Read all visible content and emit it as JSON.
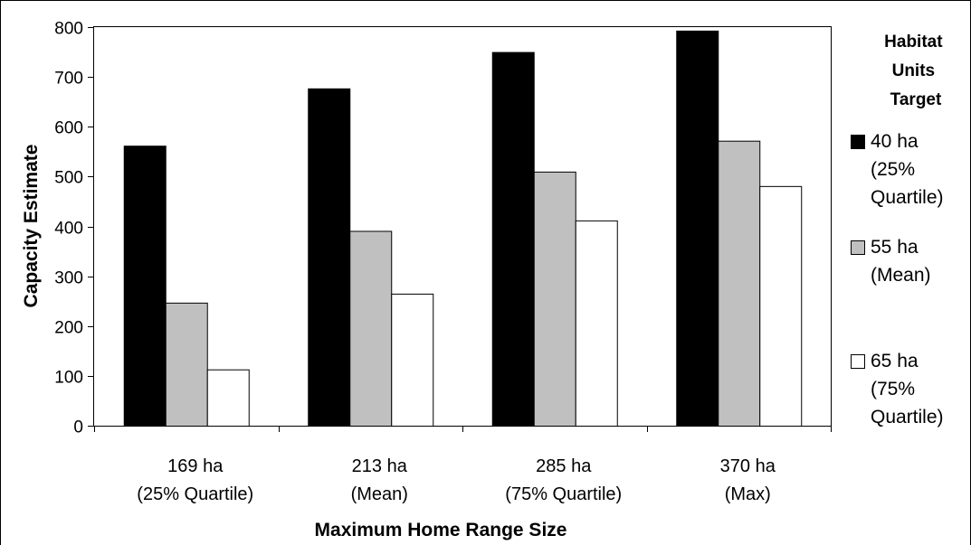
{
  "chart_data": {
    "type": "bar",
    "title": "",
    "xlabel": "Maximum Home Range Size",
    "ylabel": "Capacity Estimate",
    "ylim": [
      0,
      800
    ],
    "yticks": [
      0,
      100,
      200,
      300,
      400,
      500,
      600,
      700,
      800
    ],
    "grid": false,
    "legend_position": "right",
    "legend_title": [
      "Habitat",
      "Units",
      "Target"
    ],
    "categories": [
      [
        "169 ha",
        "(25% Quartile)"
      ],
      [
        "213 ha",
        "(Mean)"
      ],
      [
        "285 ha",
        "(75% Quartile)"
      ],
      [
        "370 ha",
        "(Max)"
      ]
    ],
    "series": [
      {
        "name": [
          "40 ha",
          "(25%",
          "Quartile)"
        ],
        "color": "#000000",
        "values": [
          562,
          677,
          750,
          793
        ]
      },
      {
        "name": [
          "55 ha",
          "(Mean)"
        ],
        "color": "#c0c0c0",
        "values": [
          247,
          391,
          510,
          572
        ]
      },
      {
        "name": [
          "65 ha",
          "(75%",
          "Quartile)"
        ],
        "color": "#ffffff",
        "values": [
          113,
          265,
          412,
          481
        ]
      }
    ]
  }
}
